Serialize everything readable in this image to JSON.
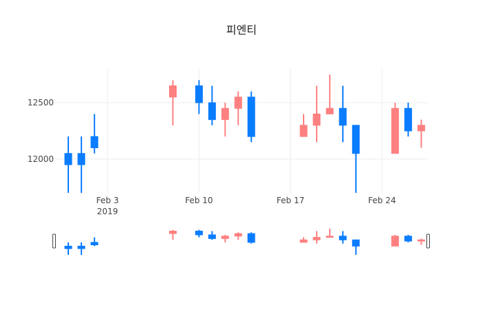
{
  "chart_data": {
    "type": "candlestick",
    "title": "피엔티",
    "xlabel": "",
    "ylabel": "",
    "ylim": [
      11700,
      12800
    ],
    "x_range": [
      "2019-01-30",
      "2019-02-27"
    ],
    "x_ticks": [
      {
        "date": "2019-02-03",
        "label": "Feb 3",
        "sublabel": "2019"
      },
      {
        "date": "2019-02-10",
        "label": "Feb 10",
        "sublabel": ""
      },
      {
        "date": "2019-02-17",
        "label": "Feb 17",
        "sublabel": ""
      },
      {
        "date": "2019-02-24",
        "label": "Feb 24",
        "sublabel": ""
      }
    ],
    "y_ticks": [
      12000,
      12500
    ],
    "grid": true,
    "legend": "none",
    "rangeslider": true,
    "colors": {
      "increasing": "#ff8080",
      "decreasing": "#0a7cff",
      "grid": "#ececec",
      "slider_border": "#444444"
    },
    "candles": [
      {
        "date": "2019-01-31",
        "open": 12050,
        "high": 12200,
        "low": 11700,
        "close": 11950
      },
      {
        "date": "2019-02-01",
        "open": 12050,
        "high": 12200,
        "low": 11700,
        "close": 11950
      },
      {
        "date": "2019-02-02",
        "open": 12200,
        "high": 12400,
        "low": 12050,
        "close": 12100
      },
      {
        "date": "2019-02-08",
        "open": 12550,
        "high": 12700,
        "low": 12300,
        "close": 12650
      },
      {
        "date": "2019-02-10",
        "open": 12650,
        "high": 12700,
        "low": 12400,
        "close": 12500
      },
      {
        "date": "2019-02-11",
        "open": 12500,
        "high": 12650,
        "low": 12300,
        "close": 12350
      },
      {
        "date": "2019-02-12",
        "open": 12350,
        "high": 12500,
        "low": 12200,
        "close": 12450
      },
      {
        "date": "2019-02-13",
        "open": 12450,
        "high": 12600,
        "low": 12300,
        "close": 12550
      },
      {
        "date": "2019-02-14",
        "open": 12550,
        "high": 12600,
        "low": 12150,
        "close": 12200
      },
      {
        "date": "2019-02-18",
        "open": 12200,
        "high": 12400,
        "low": 12200,
        "close": 12300
      },
      {
        "date": "2019-02-19",
        "open": 12300,
        "high": 12650,
        "low": 12150,
        "close": 12400
      },
      {
        "date": "2019-02-20",
        "open": 12400,
        "high": 12750,
        "low": 12400,
        "close": 12450
      },
      {
        "date": "2019-02-21",
        "open": 12450,
        "high": 12650,
        "low": 12150,
        "close": 12300
      },
      {
        "date": "2019-02-22",
        "open": 12300,
        "high": 12300,
        "low": 11700,
        "close": 12050
      },
      {
        "date": "2019-02-25",
        "open": 12050,
        "high": 12500,
        "low": 12050,
        "close": 12450
      },
      {
        "date": "2019-02-26",
        "open": 12450,
        "high": 12500,
        "low": 12200,
        "close": 12250
      },
      {
        "date": "2019-02-27",
        "open": 12250,
        "high": 12350,
        "low": 12100,
        "close": 12300
      }
    ]
  }
}
